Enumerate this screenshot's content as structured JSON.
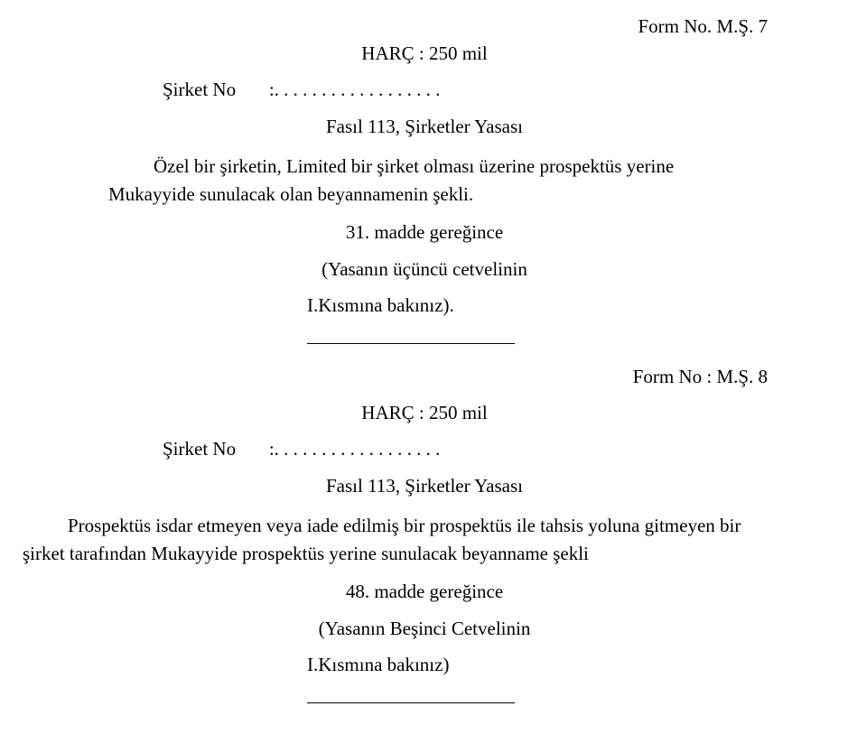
{
  "typography": {
    "font_family": "Times New Roman",
    "font_size_pt": 16,
    "color": "#000000",
    "background": "#ffffff"
  },
  "form1": {
    "form_no": "Form No. M.Ş. 7",
    "harc": "HARÇ : 250 mil",
    "sirket_label": "Şirket No",
    "sirket_dots": ":. . . . . . . . . . . . . . . . . .",
    "fasil": "Fasıl 113, Şirketler Yasası",
    "paragraph": "Özel bir şirketin, Limited bir şirket olması üzerine prospektüs yerine Mukayyide sunulacak olan beyannamenin şekli.",
    "madde": "31. madde gereğince",
    "yasanin": "(Yasanın üçüncü cetvelinin",
    "kismina": "I.Kısmına bakınız)."
  },
  "form2": {
    "form_no": "Form No : M.Ş. 8",
    "harc": "HARÇ : 250 mil",
    "sirket_label": "Şirket No",
    "sirket_dots": ":. . . . . . . . . . . . . . . . . .",
    "fasil": "Fasıl 113, Şirketler Yasası",
    "paragraph": "Prospektüs isdar etmeyen veya iade edilmiş bir prospektüs ile tahsis yoluna gitmeyen bir şirket tarafından Mukayyide prospektüs yerine sunulacak beyanname şekli",
    "madde": "48. madde gereğince",
    "yasanin": "(Yasanın Beşinci Cetvelinin",
    "kismina": "I.Kısmına bakınız)"
  }
}
